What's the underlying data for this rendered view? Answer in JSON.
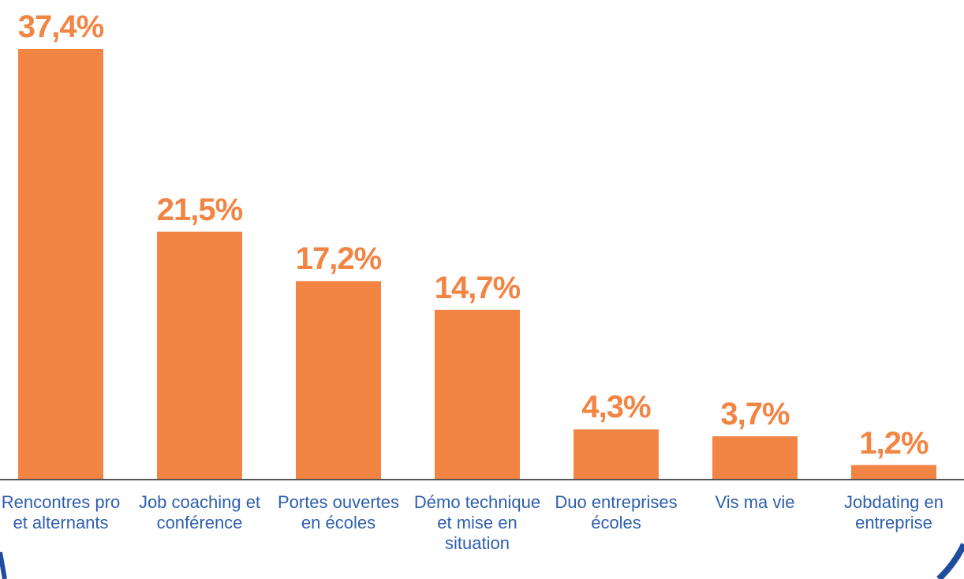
{
  "chart_data": {
    "type": "bar",
    "categories": [
      "Rencontres pro et alternants",
      "Job coaching et conférence",
      "Portes ouvertes en écoles",
      "Démo technique et mise en situation",
      "Duo entreprises écoles",
      "Vis ma vie",
      "Jobdating en entreprise"
    ],
    "values": [
      37.4,
      21.5,
      17.2,
      14.7,
      4.3,
      3.7,
      1.2
    ],
    "value_labels": [
      "37,4%",
      "21,5%",
      "17,2%",
      "14,7%",
      "4,3%",
      "3,7%",
      "1,2%"
    ],
    "color": "#f28444",
    "label_color": "#f28444",
    "category_color": "#2e5fae"
  }
}
